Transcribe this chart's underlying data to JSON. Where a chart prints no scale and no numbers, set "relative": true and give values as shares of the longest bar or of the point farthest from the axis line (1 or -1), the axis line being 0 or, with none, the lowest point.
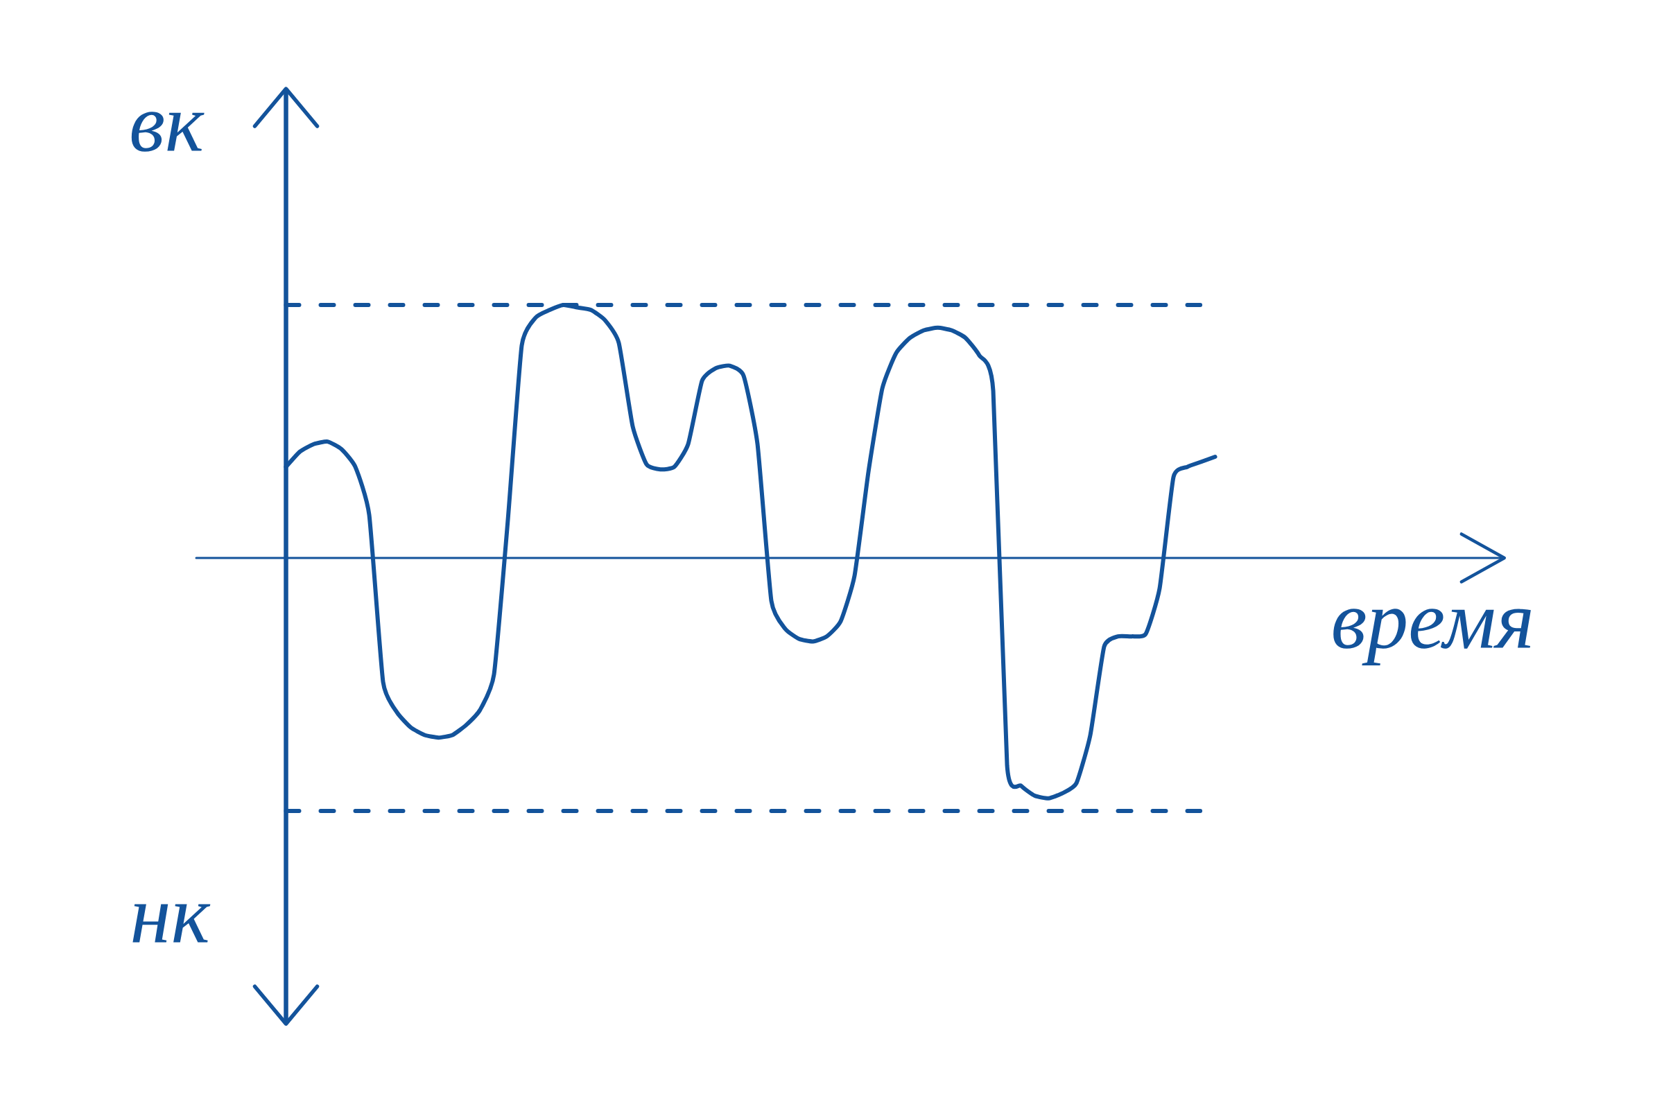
{
  "chart_data": {
    "type": "line",
    "relative": true,
    "xlabel": "время",
    "annotations": [
      "вк",
      "нк"
    ],
    "marker": "none",
    "categories": [
      null,
      null,
      null,
      null,
      null,
      null,
      null,
      null,
      null,
      null,
      null,
      null,
      null,
      null,
      null,
      null,
      null,
      null,
      null,
      null,
      null,
      null,
      null,
      null,
      null,
      null,
      null,
      null,
      null,
      null,
      null,
      null,
      null,
      null,
      null,
      null,
      null,
      null,
      null,
      null,
      null,
      null,
      null,
      null,
      null,
      null,
      null,
      null,
      null,
      null,
      null,
      null,
      null,
      null,
      null,
      null,
      null,
      null,
      null,
      null,
      null,
      null,
      null,
      null,
      null,
      null,
      null,
      null
    ],
    "series": [
      {
        "color": "#13539b",
        "values": [
          0.36,
          0.42,
          0.45,
          0.46,
          0.43,
          0.36,
          0.17,
          -0.49,
          -0.61,
          -0.67,
          -0.7,
          -0.71,
          -0.7,
          -0.66,
          -0.6,
          -0.46,
          0.15,
          0.84,
          0.95,
          0.98,
          1.0,
          0.99,
          0.98,
          0.94,
          0.85,
          0.52,
          0.37,
          0.35,
          0.36,
          0.45,
          0.7,
          0.75,
          0.76,
          0.72,
          0.45,
          -0.17,
          -0.28,
          -0.32,
          -0.33,
          -0.31,
          -0.25,
          -0.07,
          0.34,
          0.67,
          0.81,
          0.87,
          0.9,
          0.91,
          0.9,
          0.87,
          0.8,
          0.66,
          -0.82,
          -0.9,
          -0.94,
          -0.95,
          -0.93,
          -0.89,
          -0.7,
          -0.35,
          -0.31,
          -0.31,
          -0.3,
          -0.12,
          0.32,
          0.36,
          0.38,
          0.4
        ]
      }
    ],
    "ref_lines": [
      {
        "axis": "y",
        "value": 0,
        "color": "#13539b",
        "line_style": "solid"
      },
      {
        "axis": "y",
        "value": 1,
        "color": "#13539b",
        "line_style": "dashed"
      },
      {
        "axis": "y",
        "value": -1,
        "color": "#13539b",
        "line_style": "dashed"
      }
    ]
  }
}
